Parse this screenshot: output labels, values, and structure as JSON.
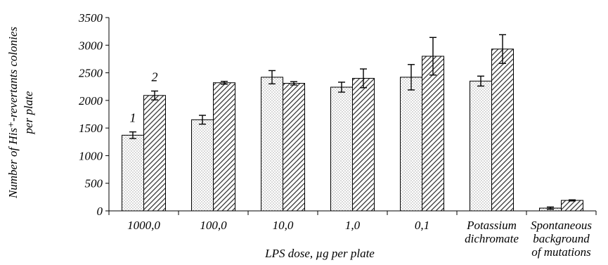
{
  "chart_data": {
    "type": "bar",
    "categories": [
      [
        "1000,0"
      ],
      [
        "100,0"
      ],
      [
        "10,0"
      ],
      [
        "1,0"
      ],
      [
        "0,1"
      ],
      [
        "Potassium",
        "dichromate"
      ],
      [
        "Spontaneous",
        "background",
        "of mutations"
      ]
    ],
    "series": [
      {
        "name": "1",
        "values": [
          1370,
          1650,
          2420,
          2240,
          2420,
          2350,
          50
        ],
        "errors": [
          60,
          80,
          120,
          90,
          230,
          90,
          20
        ],
        "pattern": "dots",
        "color": "#d9d9d9"
      },
      {
        "name": "2",
        "values": [
          2090,
          2320,
          2310,
          2400,
          2800,
          2930,
          190
        ],
        "errors": [
          80,
          25,
          30,
          170,
          340,
          260,
          10
        ],
        "pattern": "hatch",
        "color": "#595959"
      }
    ],
    "ylim": [
      0,
      3500
    ],
    "yticks": [
      0,
      500,
      1000,
      1500,
      2000,
      2500,
      3000,
      3500
    ],
    "xlabel": "LPS dose, µg per plate",
    "ylabel_lines": [
      "Number of His⁺-revertants colonies",
      "per plate"
    ],
    "grid": false,
    "series_markers_on_category": 0
  }
}
